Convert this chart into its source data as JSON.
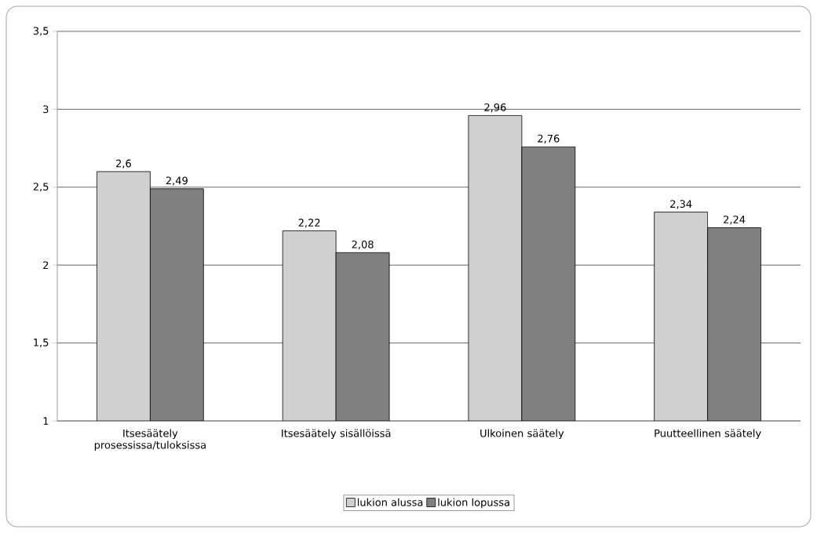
{
  "chart_data": {
    "type": "bar",
    "categories": [
      "Itsesäätely prosessissa/tuloksissa",
      "Itsesäätely sisällöissä",
      "Ulkoinen säätely",
      "Puutteellinen säätely"
    ],
    "series": [
      {
        "name": "lukion alussa",
        "color": "#d0d0d0",
        "values": [
          2.6,
          2.22,
          2.96,
          2.34
        ],
        "value_labels": [
          "2,6",
          "2,22",
          "2,96",
          "2,34"
        ]
      },
      {
        "name": "lukion lopussa",
        "color": "#808080",
        "values": [
          2.49,
          2.08,
          2.76,
          2.24
        ],
        "value_labels": [
          "2,49",
          "2,08",
          "2,76",
          "2,24"
        ]
      }
    ],
    "ylim": [
      1,
      3.5
    ],
    "yticks": [
      1,
      {
        "value": 1.5,
        "label": "1,5"
      },
      2,
      {
        "value": 2.5,
        "label": "2,5"
      },
      3,
      {
        "value": 3.5,
        "label": "3,5"
      }
    ],
    "grid": "y",
    "legend": "bottom"
  }
}
